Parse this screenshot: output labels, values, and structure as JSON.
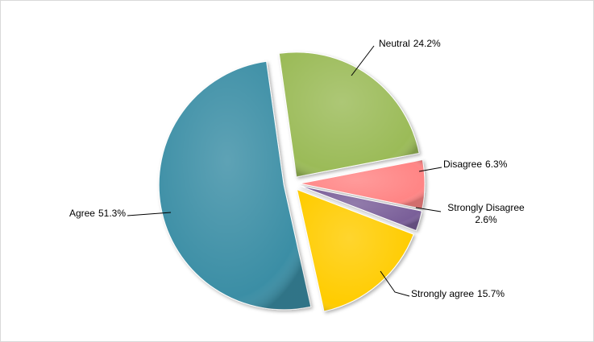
{
  "chart_data": {
    "type": "pie",
    "categories": [
      "Neutral",
      "Disagree",
      "Strongly Disagree",
      "Strongly agree",
      "Agree"
    ],
    "values": [
      24.2,
      6.3,
      2.6,
      15.7,
      51.3
    ],
    "value_labels": [
      "24.2%",
      "6.3%",
      "2.6%",
      "15.7%",
      "51.3%"
    ],
    "colors": [
      "#9bbb59",
      "#ff8585",
      "#7a5e99",
      "#ffcc00",
      "#3b8ea5"
    ]
  }
}
